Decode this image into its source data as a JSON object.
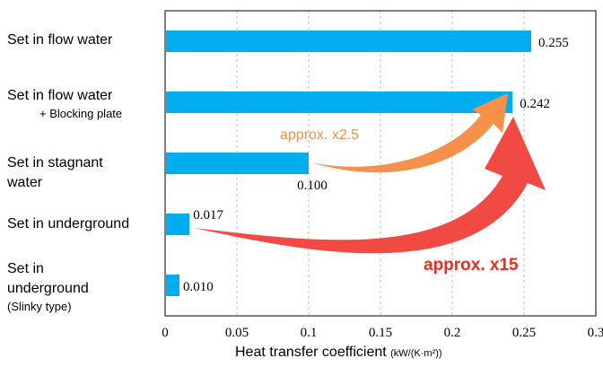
{
  "chart_data": {
    "type": "bar",
    "orientation": "horizontal",
    "categories": [
      "Set in flow water",
      "Set in flow water + Blocking plate",
      "Set in stagnant water",
      "Set in underground",
      "Set in underground (Slinky type)"
    ],
    "category_lines": [
      [
        "Set in flow water"
      ],
      [
        "Set in flow water",
        "+ Blocking plate"
      ],
      [
        "Set in stagnant",
        "water"
      ],
      [
        "Set in underground"
      ],
      [
        "Set in",
        "underground",
        "(Slinky type)"
      ]
    ],
    "values": [
      0.255,
      0.242,
      0.1,
      0.017,
      0.01
    ],
    "value_labels": [
      "0.255",
      "0.242",
      "0.100",
      "0.017",
      "0.010"
    ],
    "xlim": [
      0,
      0.3
    ],
    "xticks": [
      0,
      0.05,
      0.1,
      0.15,
      0.2,
      0.25,
      0.3
    ],
    "xtick_labels": [
      "0",
      "0.05",
      "0.1",
      "0.15",
      "0.2",
      "0.25",
      "0.3"
    ],
    "xlabel": "Heat transfer coefficient",
    "xlabel_unit": "(kW/(K·m²))",
    "grid": "vertical dashed",
    "annotations": [
      {
        "text": "approx. x2.5",
        "from_category": "Set in stagnant water",
        "to_category": "Set in flow water + Blocking plate"
      },
      {
        "text": "approx. x15",
        "from_category": "Set in underground",
        "to_category": "Set in flow water + Blocking plate"
      }
    ],
    "colors": {
      "bar": "#00AEEF",
      "arrow_small": "#F5914A",
      "arrow_large": "#F04A43",
      "grid": "#BFBFBF"
    }
  }
}
